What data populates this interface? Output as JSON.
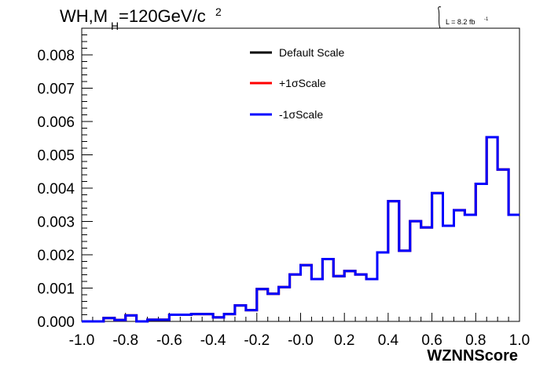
{
  "chart_data": {
    "type": "line",
    "title_main": "WH,M",
    "title_sub": "H",
    "title_tail": "=120GeV/c",
    "title_sup": "2",
    "lumi_label": "L = 8.2 fb",
    "lumi_sup": "-1",
    "xlabel": "WZNNScore",
    "ylabel": "",
    "xlim": [
      -1.0,
      1.0
    ],
    "ylim": [
      0.0,
      0.0088
    ],
    "x_ticks": [
      "-1.0",
      "-0.8",
      "-0.6",
      "-0.4",
      "-0.2",
      "-0.0",
      "0.2",
      "0.4",
      "0.6",
      "0.8",
      "1.0"
    ],
    "y_ticks": [
      "0.000",
      "0.001",
      "0.002",
      "0.003",
      "0.004",
      "0.005",
      "0.006",
      "0.007",
      "0.008"
    ],
    "grid": false,
    "legend_position": "top-center",
    "legend": [
      {
        "label": "Default Scale",
        "color": "#000000"
      },
      {
        "label": "+1σScale",
        "color": "#ff0000"
      },
      {
        "label": "-1σScale",
        "color": "#0000ff"
      }
    ],
    "bin_edges": [
      -1.0,
      -0.95,
      -0.9,
      -0.85,
      -0.8,
      -0.75,
      -0.7,
      -0.65,
      -0.6,
      -0.55,
      -0.5,
      -0.45,
      -0.4,
      -0.35,
      -0.3,
      -0.25,
      -0.2,
      -0.15,
      -0.1,
      -0.05,
      0.0,
      0.05,
      0.1,
      0.15,
      0.2,
      0.25,
      0.3,
      0.35,
      0.4,
      0.45,
      0.5,
      0.55,
      0.6,
      0.65,
      0.7,
      0.75,
      0.8,
      0.85,
      0.9,
      0.95,
      1.0
    ],
    "series": [
      {
        "name": "Default Scale",
        "color": "#000000",
        "values": [
          0.0,
          0.0,
          0.0001,
          4e-05,
          0.00018,
          0.0,
          5e-05,
          5e-05,
          0.0002,
          0.0002,
          0.00022,
          0.00022,
          0.00012,
          0.00022,
          0.00048,
          0.00034,
          0.00097,
          0.00083,
          0.00103,
          0.00141,
          0.00169,
          0.00127,
          0.00187,
          0.00136,
          0.00151,
          0.00141,
          0.00127,
          0.00207,
          0.00361,
          0.00212,
          0.00301,
          0.00282,
          0.00385,
          0.00287,
          0.00334,
          0.0032,
          0.00413,
          0.00553,
          0.00456,
          0.0032
        ]
      },
      {
        "name": "+1σScale",
        "color": "#ff0000",
        "values": [
          0.0,
          0.0,
          0.0001,
          4e-05,
          0.00018,
          0.0,
          5e-05,
          5e-05,
          0.0002,
          0.0002,
          0.00022,
          0.00022,
          0.00012,
          0.00022,
          0.00048,
          0.00034,
          0.00097,
          0.00083,
          0.00103,
          0.00141,
          0.00169,
          0.00127,
          0.00187,
          0.00136,
          0.00151,
          0.00141,
          0.00127,
          0.00207,
          0.00361,
          0.00212,
          0.00301,
          0.00282,
          0.00385,
          0.00287,
          0.00334,
          0.0032,
          0.00413,
          0.00553,
          0.00456,
          0.0032
        ]
      },
      {
        "name": "-1σScale",
        "color": "#0000ff",
        "values": [
          0.0,
          0.0,
          0.0001,
          4e-05,
          0.00018,
          0.0,
          5e-05,
          5e-05,
          0.0002,
          0.0002,
          0.00022,
          0.00022,
          0.00012,
          0.00022,
          0.00048,
          0.00034,
          0.00097,
          0.00083,
          0.00103,
          0.00141,
          0.00169,
          0.00127,
          0.00187,
          0.00136,
          0.00151,
          0.00141,
          0.00127,
          0.00207,
          0.00361,
          0.00212,
          0.00301,
          0.00282,
          0.00385,
          0.00287,
          0.00334,
          0.0032,
          0.00413,
          0.00553,
          0.00456,
          0.0032
        ]
      }
    ]
  }
}
